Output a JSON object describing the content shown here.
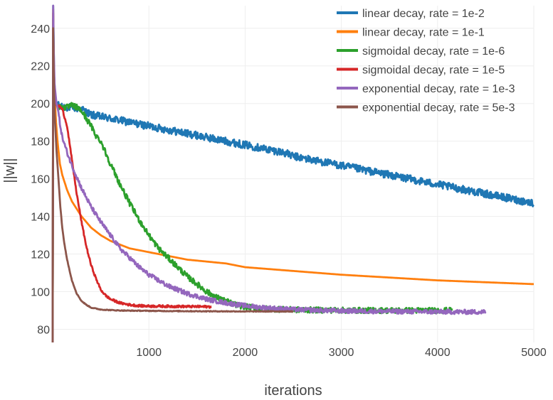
{
  "chart_data": {
    "type": "line",
    "title": "",
    "xlabel": "iterations",
    "ylabel": "||w||",
    "xlim": [
      0,
      5000
    ],
    "ylim": [
      73,
      252
    ],
    "xticks": [
      1000,
      2000,
      3000,
      4000,
      5000
    ],
    "yticks": [
      80,
      100,
      120,
      140,
      160,
      180,
      200,
      220,
      240
    ],
    "grid": true,
    "legend_position": "top-right",
    "series": [
      {
        "name": "linear decay, rate = 1e-2",
        "color": "#1f77b4",
        "noise": 2.0,
        "x": [
          0,
          5,
          10,
          15,
          25,
          40,
          60,
          80,
          100,
          150,
          200,
          300,
          400,
          500,
          600,
          700,
          800,
          900,
          1000,
          1100,
          1200,
          1300,
          1400,
          1500,
          1600,
          1700,
          1800,
          1900,
          2000,
          2100,
          2200,
          2300,
          2400,
          2500,
          2600,
          2700,
          2800,
          2900,
          3000,
          3100,
          3200,
          3300,
          3400,
          3500,
          3600,
          3700,
          3800,
          3900,
          4000,
          4100,
          4200,
          4300,
          4400,
          4500,
          4600,
          4700,
          4800,
          4900,
          5000
        ],
        "y": [
          73,
          252,
          235,
          215,
          205,
          200,
          199,
          198,
          198,
          198,
          198,
          197,
          194,
          193,
          192,
          191,
          190,
          189,
          188,
          187,
          186,
          185,
          184,
          183,
          182,
          181,
          180,
          179,
          178,
          177,
          176,
          175,
          174,
          172,
          171,
          170,
          169,
          168,
          167,
          166,
          165,
          164,
          163,
          162,
          161,
          160,
          159,
          158,
          157,
          156,
          155,
          154,
          153,
          152,
          151,
          150,
          149,
          148,
          147
        ]
      },
      {
        "name": "linear decay, rate = 1e-1",
        "color": "#ff7f0e",
        "noise": 0,
        "x": [
          0,
          5,
          10,
          20,
          35,
          50,
          75,
          100,
          150,
          200,
          300,
          400,
          500,
          600,
          700,
          800,
          1000,
          1200,
          1400,
          1600,
          1800,
          2000,
          2500,
          3000,
          3500,
          4000,
          4500,
          5000
        ],
        "y": [
          73,
          250,
          225,
          205,
          190,
          180,
          168,
          162,
          154,
          148,
          140,
          134,
          130,
          127,
          125,
          123,
          121,
          119,
          117,
          116,
          115,
          113,
          111,
          109,
          107.5,
          106,
          105,
          104
        ]
      },
      {
        "name": "sigmoidal decay, rate = 1e-6",
        "color": "#2ca02c",
        "noise": 1.5,
        "x": [
          0,
          5,
          10,
          20,
          40,
          60,
          100,
          150,
          200,
          250,
          300,
          350,
          400,
          450,
          500,
          550,
          600,
          700,
          800,
          900,
          1000,
          1100,
          1200,
          1300,
          1400,
          1500,
          1600,
          1700,
          1800,
          1900,
          2000,
          2200,
          2400,
          2600,
          3000,
          3500,
          4000,
          4150
        ],
        "y": [
          73,
          245,
          220,
          205,
          200,
          198,
          198,
          198,
          199,
          198,
          196,
          192,
          188,
          183,
          180,
          174,
          168,
          157,
          147,
          138,
          130,
          123,
          118,
          113,
          108,
          104,
          100,
          97,
          95,
          93,
          92,
          91,
          90.5,
          90.3,
          90.1,
          90,
          90,
          90
        ]
      },
      {
        "name": "sigmoidal decay, rate = 1e-5",
        "color": "#d62728",
        "noise": 0.6,
        "x": [
          0,
          5,
          10,
          20,
          40,
          60,
          80,
          100,
          150,
          200,
          250,
          300,
          350,
          400,
          450,
          500,
          550,
          600,
          700,
          800,
          900,
          1000,
          1200,
          1400,
          1600,
          1650
        ],
        "y": [
          73,
          248,
          222,
          205,
          199,
          199,
          198,
          197,
          188,
          170,
          152,
          137,
          124,
          114,
          107,
          101,
          98,
          96,
          94,
          93,
          92.5,
          92.3,
          92.2,
          92.1,
          92,
          92
        ]
      },
      {
        "name": "exponential decay, rate = 1e-3",
        "color": "#9467bd",
        "noise": 1.2,
        "x": [
          0,
          5,
          10,
          20,
          40,
          60,
          80,
          100,
          150,
          200,
          250,
          300,
          350,
          400,
          450,
          500,
          600,
          700,
          800,
          900,
          1000,
          1200,
          1400,
          1600,
          1800,
          2000,
          2200,
          2500,
          3000,
          3500,
          4000,
          4500
        ],
        "y": [
          73,
          252,
          230,
          210,
          200,
          195,
          188,
          182,
          174,
          167,
          161,
          155,
          150,
          145,
          141,
          137,
          130,
          123,
          118,
          113,
          109,
          103,
          99,
          96,
          94,
          92.5,
          91.5,
          90.5,
          89.8,
          89.5,
          89.3,
          89.2
        ]
      },
      {
        "name": "exponential decay, rate = 5e-3",
        "color": "#8c564b",
        "noise": 0.2,
        "x": [
          0,
          5,
          10,
          20,
          40,
          60,
          80,
          100,
          120,
          150,
          200,
          250,
          300,
          350,
          400,
          450,
          500,
          600,
          700,
          800,
          1000,
          1200,
          1500,
          2000,
          2500
        ],
        "y": [
          73,
          240,
          218,
          195,
          175,
          160,
          145,
          134,
          126,
          117,
          106,
          99,
          95,
          93,
          91.5,
          91,
          90.5,
          90.2,
          90,
          89.9,
          89.8,
          89.7,
          89.6,
          89.5,
          89.5
        ]
      }
    ]
  }
}
